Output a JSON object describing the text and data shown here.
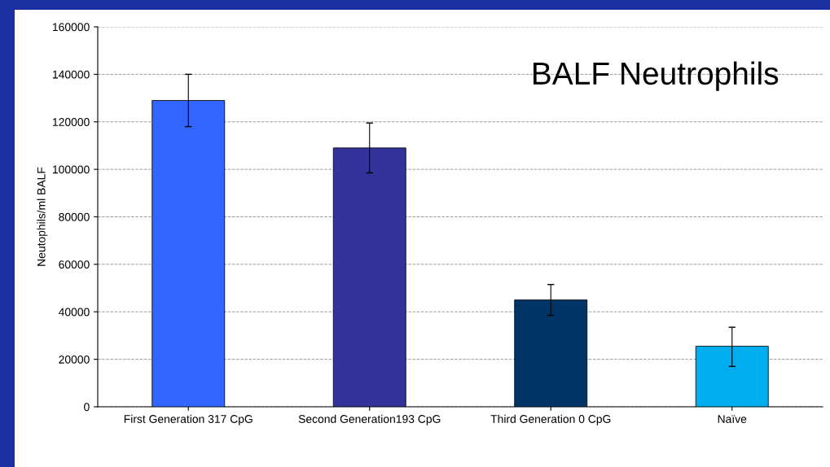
{
  "chart_data": {
    "type": "bar",
    "title": "BALF Neutrophils",
    "ylabel": "Neutophils/ml BALF",
    "categories": [
      "First Generation 317 CpG",
      "Second Generation193 CpG",
      "Third Generation 0 CpG",
      "Naïve"
    ],
    "values": [
      129000,
      109000,
      45000,
      25500
    ],
    "colors": [
      "#3366ff",
      "#333399",
      "#003366",
      "#00aeef"
    ],
    "errors": [
      [
        118000,
        140000
      ],
      [
        98500,
        119500
      ],
      [
        38500,
        51500
      ],
      [
        17000,
        33500
      ]
    ],
    "ylim": [
      0,
      160000
    ],
    "yticks": [
      0,
      20000,
      40000,
      60000,
      80000,
      100000,
      120000,
      140000,
      160000
    ],
    "grid": "y"
  }
}
